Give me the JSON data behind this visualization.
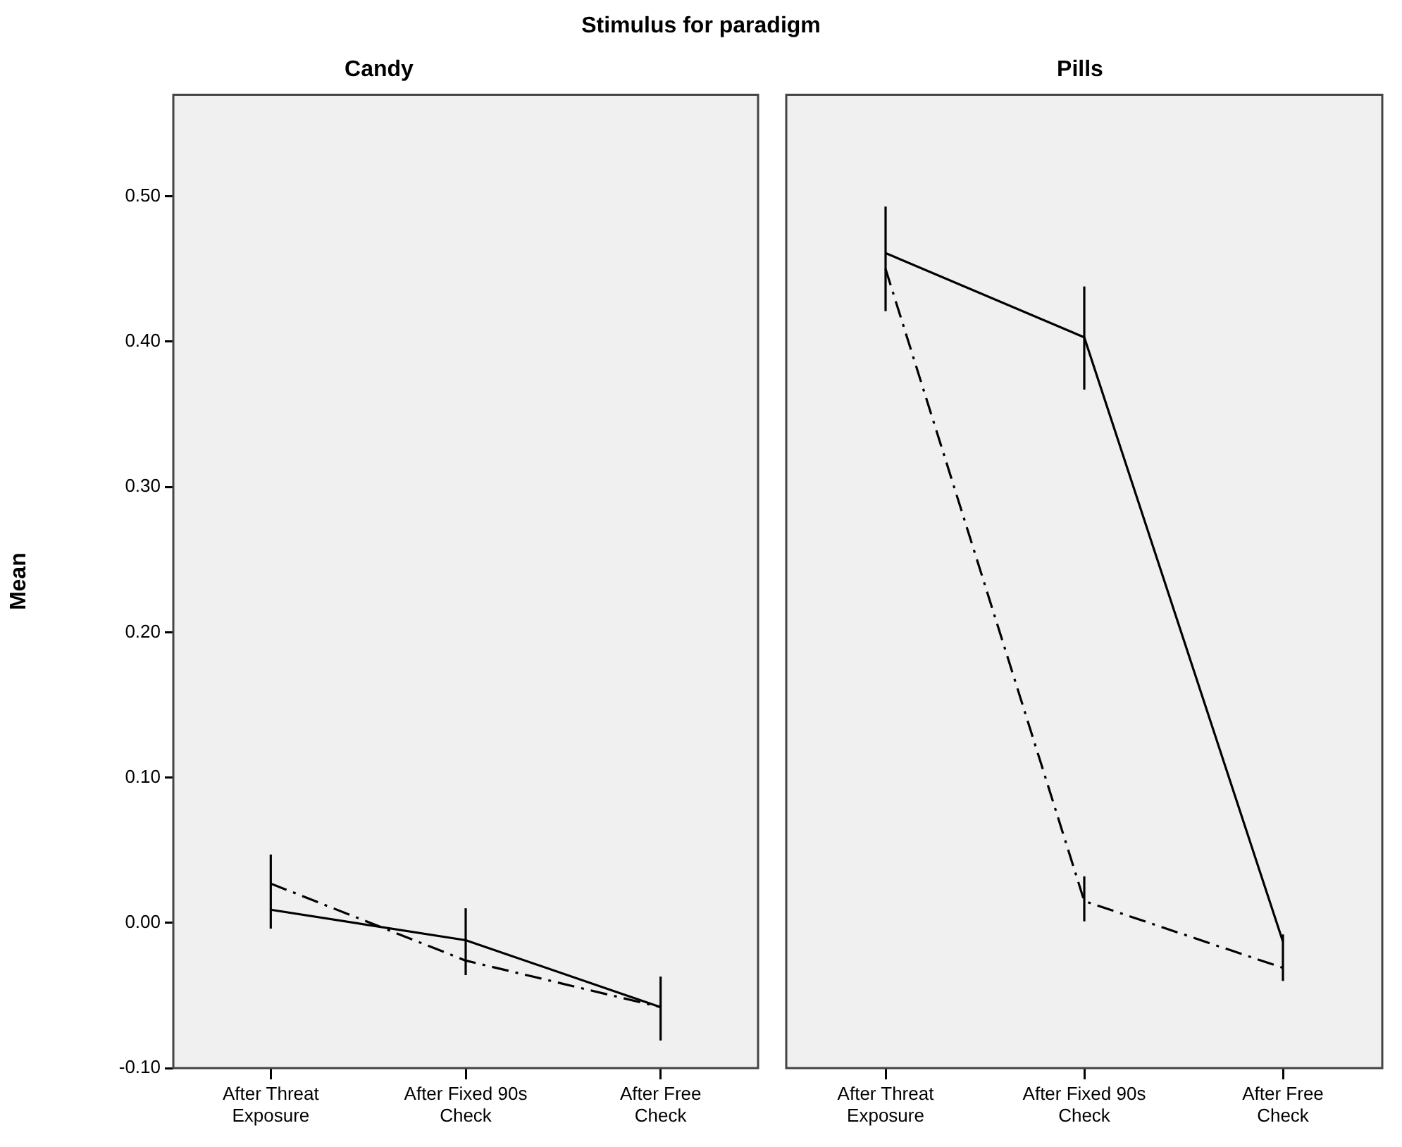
{
  "chart_data": [
    {
      "type": "line",
      "title": "Candy",
      "ylabel": "Mean",
      "annotations": [
        "Stimulus for paradigm"
      ],
      "categories": [
        "After Threat Exposure",
        "After Fixed 90s Check",
        "After Free Check"
      ],
      "ylim": [
        -0.1,
        0.57
      ],
      "yticks": [
        {
          "value": -0.1,
          "label": "-0.10"
        },
        {
          "value": 0,
          "label": "0.00"
        },
        {
          "value": 0.1,
          "label": "0.10"
        },
        {
          "value": 0.2,
          "label": "0.20"
        },
        {
          "value": 0.3,
          "label": "0.30"
        },
        {
          "value": 0.4,
          "label": "0.40"
        },
        {
          "value": 0.5,
          "label": "0.50"
        }
      ],
      "grid": false,
      "legend": false,
      "marker": "none",
      "series": [
        {
          "color": "#000000",
          "line_style": "solid",
          "values": [
            0.009,
            -0.012,
            -0.058
          ],
          "errors": [
            [
              -0.004,
              0.047
            ],
            [
              -0.036,
              0.01
            ],
            [
              -0.081,
              -0.037
            ]
          ]
        },
        {
          "color": "#000000",
          "line_style": "dashed",
          "values": [
            0.027,
            -0.026,
            -0.058
          ],
          "errors": [
            null,
            null,
            null
          ]
        }
      ]
    },
    {
      "type": "line",
      "title": "Pills",
      "categories": [
        "After Threat Exposure",
        "After Fixed 90s Check",
        "After Free Check"
      ],
      "ylim": [
        -0.1,
        0.57
      ],
      "tick_labels": "x",
      "grid": false,
      "legend": false,
      "marker": "none",
      "series": [
        {
          "color": "#000000",
          "line_style": "solid",
          "values": [
            0.461,
            0.403,
            -0.013
          ],
          "errors": [
            [
              0.421,
              0.493
            ],
            [
              0.367,
              0.438
            ],
            [
              -0.04,
              -0.008
            ]
          ]
        },
        {
          "color": "#000000",
          "line_style": "dashed",
          "values": [
            0.45,
            0.015,
            -0.031
          ],
          "errors": [
            null,
            [
              0.001,
              0.032
            ],
            null
          ]
        }
      ]
    }
  ]
}
